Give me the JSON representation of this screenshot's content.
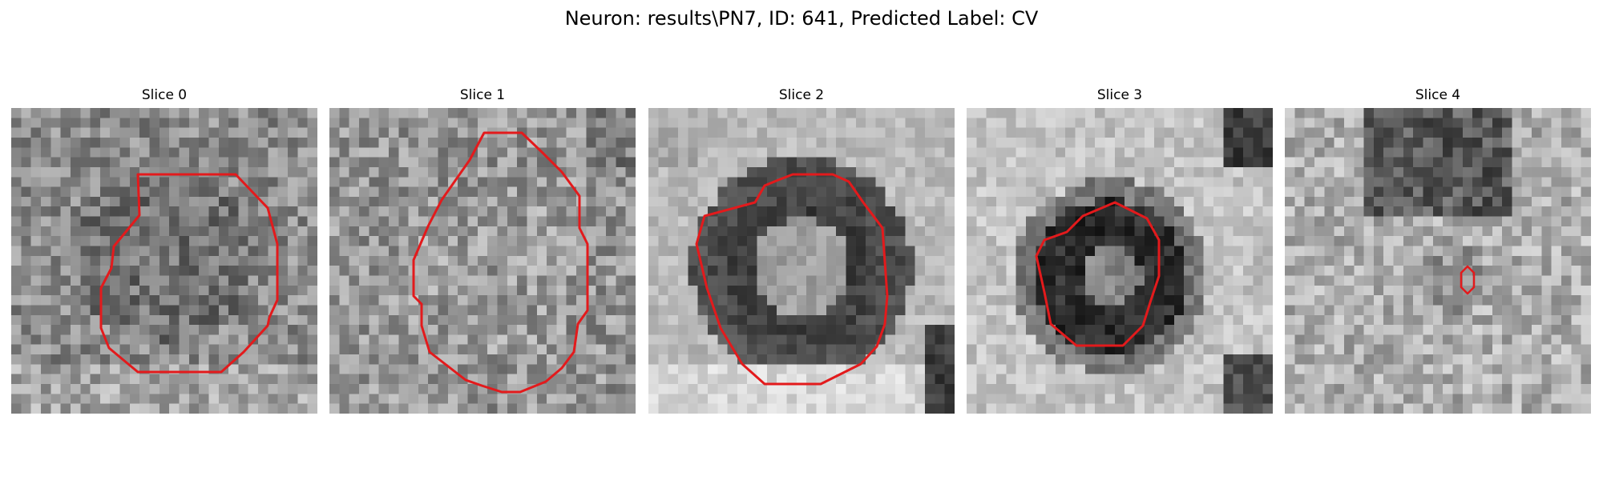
{
  "figure": {
    "title": "Neuron: results\\PN7, ID: 641, Predicted Label: CV"
  },
  "slices": [
    {
      "title": "Slice 0",
      "contour_color": "#e31a1c"
    },
    {
      "title": "Slice 1",
      "contour_color": "#e31a1c"
    },
    {
      "title": "Slice 2",
      "contour_color": "#e31a1c"
    },
    {
      "title": "Slice 3",
      "contour_color": "#e31a1c"
    },
    {
      "title": "Slice 4",
      "contour_color": "#e31a1c"
    }
  ],
  "image_style": {
    "colormap": "grayscale",
    "grid_cells": 31
  }
}
